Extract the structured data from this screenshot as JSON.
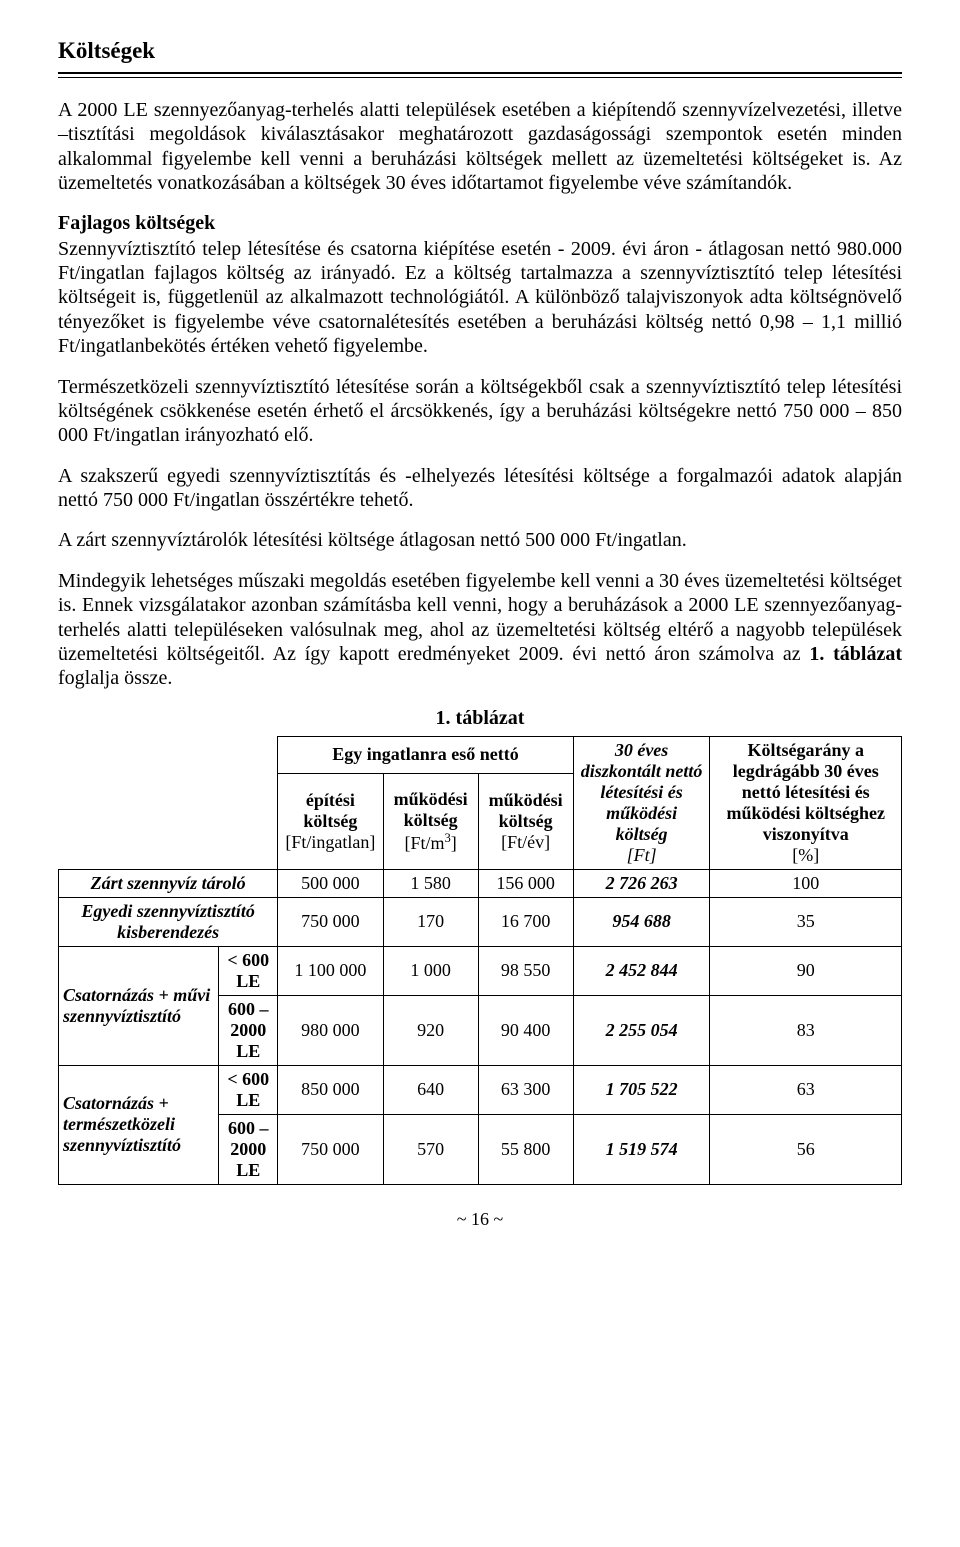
{
  "title": "Költségek",
  "p1": "A 2000 LE szennyezőanyag-terhelés alatti települések esetében a kiépítendő szennyvízelvezetési, illetve –tisztítási megoldások kiválasztásakor meghatározott gazdaságossági szempontok esetén minden alkalommal figyelembe kell venni a beruházási költségek mellett az üzemeltetési költségeket is. Az üzemeltetés vonatkozásában a költségek 30 éves időtartamot figyelembe véve számítandók.",
  "heading2": "Fajlagos költségek",
  "p2": "Szennyvíztisztító telep létesítése és csatorna kiépítése esetén - 2009. évi áron - átlagosan nettó 980.000 Ft/ingatlan fajlagos költség az irányadó. Ez a költség tartalmazza a szennyvíztisztító telep létesítési költségeit is, függetlenül az alkalmazott technológiától. A különböző talajviszonyok adta költségnövelő tényezőket is figyelembe véve csatornalétesítés esetében a beruházási költség nettó 0,98 – 1,1 millió Ft/ingatlanbekötés értéken vehető figyelembe.",
  "p3": "Természetközeli szennyvíztisztító létesítése során a költségekből csak a szennyvíztisztító telep létesítési költségének csökkenése esetén érhető el árcsökkenés, így a beruházási költségekre nettó 750 000 – 850 000 Ft/ingatlan irányozható elő.",
  "p4": "A szakszerű egyedi szennyvíztisztítás és -elhelyezés létesítési költsége a forgalmazói adatok alapján nettó 750 000 Ft/ingatlan összértékre tehető.",
  "p5": "A zárt szennyvíztárolók létesítési költsége átlagosan nettó 500 000 Ft/ingatlan.",
  "p6a": "Mindegyik lehetséges műszaki megoldás esetében figyelembe kell venni a 30 éves üzemeltetési költséget is. Ennek vizsgálatakor azonban számításba kell venni, hogy a beruházások a 2000 LE szennyezőanyag-terhelés alatti településeken valósulnak meg, ahol az üzemeltetési költség eltérő a nagyobb települések üzemeltetési költségeitől. Az így kapott eredményeket 2009. évi nettó áron számolva az ",
  "p6b": "1. táblázat",
  "p6c": " foglalja össze.",
  "table": {
    "caption": "1. táblázat",
    "group_head": "Egy ingatlanra eső nettó",
    "cols": {
      "c1": {
        "t": "építési költség",
        "unit": "[Ft/ingatlan]"
      },
      "c2": {
        "t": "működési költség",
        "unit_a": "[Ft/m",
        "unit_b": "]"
      },
      "c3": {
        "t": "működési költség",
        "unit": "[Ft/év]"
      },
      "c4": {
        "t": "30 éves diszkontált nettó létesítési és működési költség",
        "unit": "[Ft]"
      },
      "c5": {
        "t": "Költségarány a legdrágább 30 éves nettó létesítési és működési költséghez viszonyítva",
        "unit": "[%]"
      }
    },
    "rows": [
      {
        "label": "Zárt szennyvíz tároló",
        "v": [
          "500 000",
          "1 580",
          "156 000",
          "2 726 263",
          "100"
        ]
      },
      {
        "label": "Egyedi szennyvíztisztító kisberendezés",
        "v": [
          "750 000",
          "170",
          "16 700",
          "954 688",
          "35"
        ]
      }
    ],
    "groups": [
      {
        "glabel": "Csatornázás + művi szennyvíztisztító",
        "subrows": [
          {
            "slabel": "< 600 LE",
            "v": [
              "1 100 000",
              "1 000",
              "98 550",
              "2 452 844",
              "90"
            ]
          },
          {
            "slabel": "600 – 2000 LE",
            "v": [
              "980 000",
              "920",
              "90 400",
              "2 255 054",
              "83"
            ]
          }
        ]
      },
      {
        "glabel": "Csatornázás + természetközeli szennyvíztisztító",
        "subrows": [
          {
            "slabel": "< 600 LE",
            "v": [
              "850 000",
              "640",
              "63 300",
              "1 705 522",
              "63"
            ]
          },
          {
            "slabel": "600 – 2000 LE",
            "v": [
              "750 000",
              "570",
              "55 800",
              "1 519 574",
              "56"
            ]
          }
        ]
      }
    ]
  },
  "page_num": "~ 16 ~"
}
